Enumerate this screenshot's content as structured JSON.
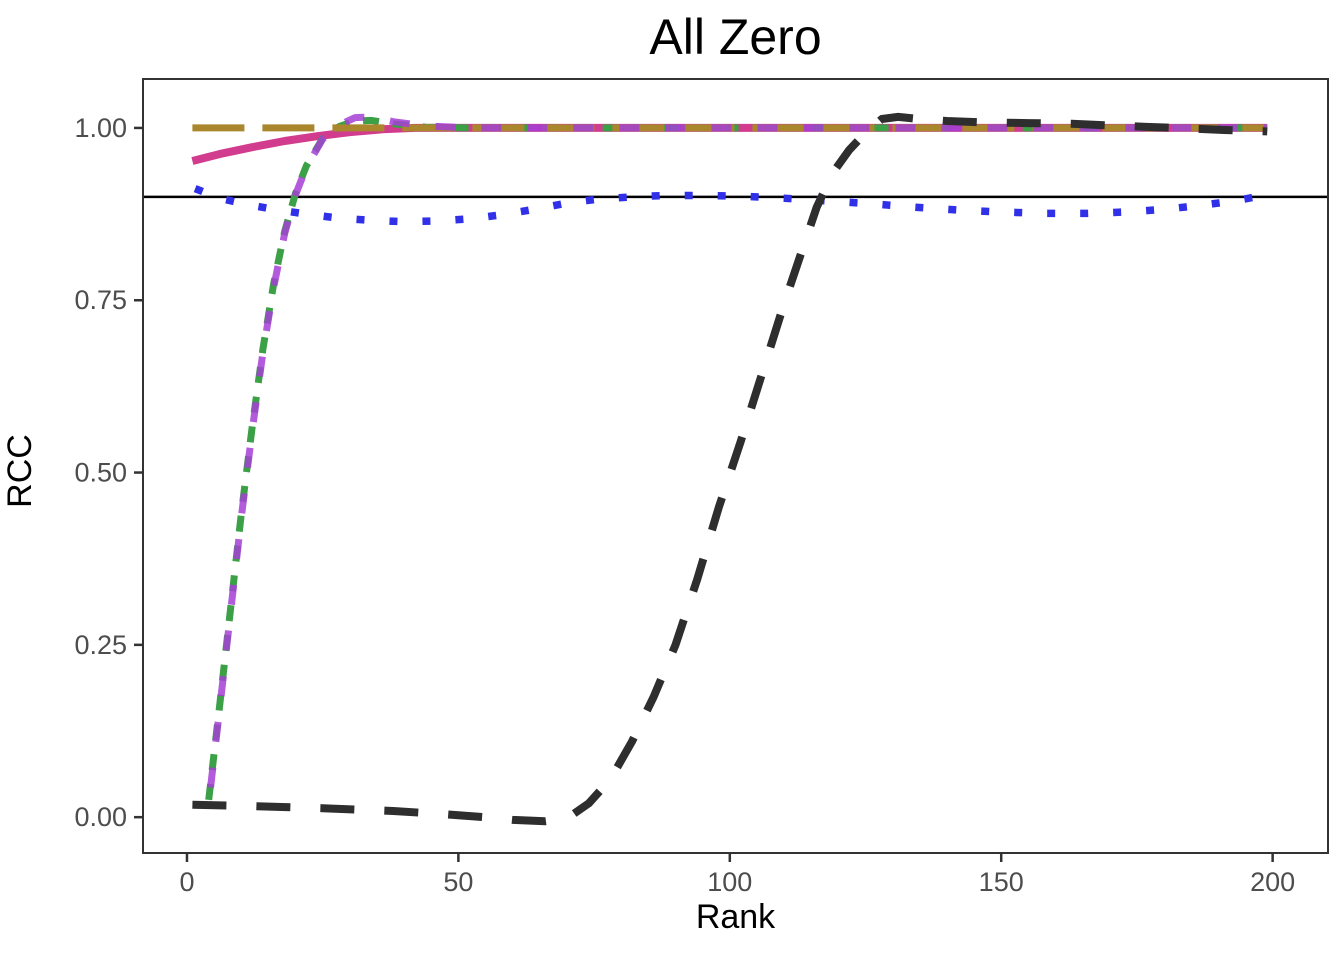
{
  "page_title": "All Zero",
  "chart_data": {
    "type": "line",
    "title": "All Zero",
    "xlabel": "Rank",
    "ylabel": "RCC",
    "xlim": [
      -8.1,
      210.2
    ],
    "ylim": [
      -0.052,
      1.071
    ],
    "x_ticks": [
      0,
      50,
      100,
      150,
      200
    ],
    "x_tick_labels": [
      "0",
      "50",
      "100",
      "150",
      "200"
    ],
    "y_ticks": [
      0,
      0.25,
      0.5,
      0.75,
      1
    ],
    "y_tick_labels": [
      "0.00",
      "0.25",
      "0.50",
      "0.75",
      "1.00"
    ],
    "grid": false,
    "legend": "none",
    "background": "#ffffff",
    "reference_line": {
      "y": 0.9,
      "color": "#000000",
      "width": 2.5
    },
    "axis": {
      "border_color": "#333333",
      "tick_color": "#333333",
      "tick_length": 9,
      "tick_label_color": "#4D4D4D",
      "tick_label_size": 27,
      "title_color": "#000000"
    },
    "series": [
      {
        "name": "solid-pink",
        "color": "#D23C8E",
        "width": 8,
        "dash": [],
        "opacity": 1,
        "points": [
          [
            1,
            0.952
          ],
          [
            6,
            0.962
          ],
          [
            12,
            0.972
          ],
          [
            18,
            0.981
          ],
          [
            24,
            0.988
          ],
          [
            30,
            0.994
          ],
          [
            36,
            0.998
          ],
          [
            42,
            1.0
          ],
          [
            199,
            1.0
          ]
        ]
      },
      {
        "name": "dashed-green",
        "color": "#3CA046",
        "width": 7,
        "dash": [
          16,
          14
        ],
        "opacity": 1,
        "points": [
          [
            4,
            0.025
          ],
          [
            6,
            0.16
          ],
          [
            8,
            0.3
          ],
          [
            10,
            0.44
          ],
          [
            12,
            0.565
          ],
          [
            14,
            0.68
          ],
          [
            16,
            0.775
          ],
          [
            18,
            0.85
          ],
          [
            20,
            0.905
          ],
          [
            22,
            0.945
          ],
          [
            25,
            0.985
          ],
          [
            28,
            1.002
          ],
          [
            31,
            1.01
          ],
          [
            34,
            1.011
          ],
          [
            38,
            1.006
          ],
          [
            44,
            1.001
          ],
          [
            52,
            1.0
          ],
          [
            199,
            1.0
          ]
        ]
      },
      {
        "name": "longdash-gold",
        "color": "#AA872C",
        "width": 7,
        "dash": [
          52,
          18
        ],
        "opacity": 1,
        "points": [
          [
            1,
            1.0
          ],
          [
            199,
            1.0
          ]
        ]
      },
      {
        "name": "dashed-purple",
        "color": "#A53FD6",
        "width": 7,
        "dash": [
          20,
          26
        ],
        "dash_offset": 30,
        "opacity": 0.85,
        "points": [
          [
            4,
            0.02
          ],
          [
            6,
            0.155
          ],
          [
            8,
            0.295
          ],
          [
            10,
            0.435
          ],
          [
            12,
            0.56
          ],
          [
            14,
            0.675
          ],
          [
            16,
            0.77
          ],
          [
            18,
            0.847
          ],
          [
            20,
            0.903
          ],
          [
            22,
            0.943
          ],
          [
            25,
            0.984
          ],
          [
            28,
            1.004
          ],
          [
            31,
            1.015
          ],
          [
            34,
            1.016
          ],
          [
            38,
            1.009
          ],
          [
            44,
            1.003
          ],
          [
            52,
            1.0
          ],
          [
            199,
            1.0
          ]
        ]
      },
      {
        "name": "dotted-blue",
        "color": "#3030E8",
        "width": 7.5,
        "dash": [
          8,
          25
        ],
        "opacity": 1,
        "points": [
          [
            1.5,
            0.912
          ],
          [
            6,
            0.898
          ],
          [
            11,
            0.889
          ],
          [
            16,
            0.882
          ],
          [
            22,
            0.875
          ],
          [
            28,
            0.869
          ],
          [
            34,
            0.866
          ],
          [
            40,
            0.864
          ],
          [
            46,
            0.865
          ],
          [
            52,
            0.868
          ],
          [
            58,
            0.874
          ],
          [
            64,
            0.882
          ],
          [
            70,
            0.891
          ],
          [
            76,
            0.897
          ],
          [
            82,
            0.9
          ],
          [
            88,
            0.902
          ],
          [
            95,
            0.902
          ],
          [
            102,
            0.901
          ],
          [
            110,
            0.898
          ],
          [
            118,
            0.894
          ],
          [
            126,
            0.89
          ],
          [
            134,
            0.885
          ],
          [
            142,
            0.881
          ],
          [
            150,
            0.878
          ],
          [
            158,
            0.876
          ],
          [
            166,
            0.876
          ],
          [
            173,
            0.878
          ],
          [
            180,
            0.882
          ],
          [
            186,
            0.887
          ],
          [
            192,
            0.893
          ],
          [
            197,
            0.9
          ],
          [
            199,
            0.902
          ]
        ]
      },
      {
        "name": "longdash-black",
        "color": "#2E2E2E",
        "width": 8,
        "dash": [
          34,
          30
        ],
        "opacity": 1,
        "points": [
          [
            1,
            0.018
          ],
          [
            12,
            0.016
          ],
          [
            25,
            0.013
          ],
          [
            38,
            0.009
          ],
          [
            48,
            0.004
          ],
          [
            55,
            0.0
          ],
          [
            60,
            -0.004
          ],
          [
            66,
            -0.006
          ],
          [
            70,
            -0.002
          ],
          [
            74,
            0.02
          ],
          [
            78,
            0.055
          ],
          [
            82,
            0.11
          ],
          [
            86,
            0.175
          ],
          [
            90,
            0.25
          ],
          [
            94,
            0.345
          ],
          [
            98,
            0.45
          ],
          [
            102,
            0.545
          ],
          [
            106,
            0.645
          ],
          [
            110,
            0.745
          ],
          [
            113,
            0.815
          ],
          [
            116,
            0.885
          ],
          [
            119,
            0.935
          ],
          [
            122,
            0.968
          ],
          [
            125,
            0.993
          ],
          [
            128,
            1.013
          ],
          [
            131,
            1.016
          ],
          [
            135,
            1.013
          ],
          [
            140,
            1.01
          ],
          [
            147,
            1.008
          ],
          [
            155,
            1.007
          ],
          [
            163,
            1.006
          ],
          [
            172,
            1.003
          ],
          [
            182,
            1.0
          ],
          [
            191,
            0.997
          ],
          [
            199,
            0.995
          ]
        ]
      }
    ]
  }
}
